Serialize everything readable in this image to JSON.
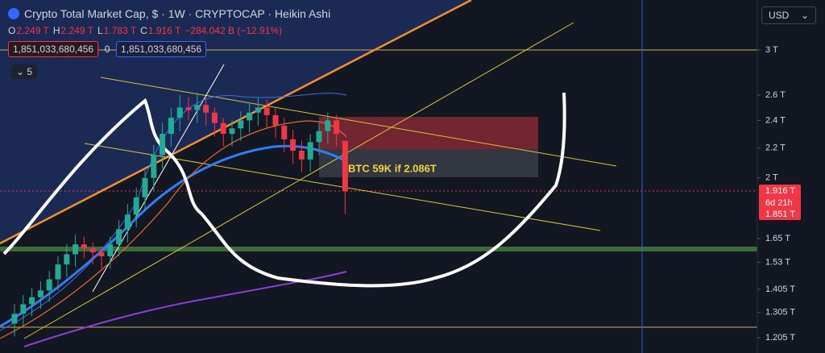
{
  "header": {
    "title": "Crypto Total Market Cap, $ · 1W · CRYPTOCAP · Heikin Ashi",
    "ohlc": [
      {
        "key": "O",
        "value": "2.249 T"
      },
      {
        "key": "H",
        "value": "2.249 T"
      },
      {
        "key": "L",
        "value": "1.783 T"
      },
      {
        "key": "C",
        "value": "1.916 T"
      }
    ],
    "change": "−284.042 B (−12.91%)",
    "boxes": [
      "1,851,033,680,456",
      "0",
      "1,851,033,680,456"
    ],
    "indicators": "5"
  },
  "currency": "USD",
  "annotation": "BTC 59K if 2.086T",
  "price_tags": [
    "1.916 T",
    "6d 21h",
    "1.851 T"
  ],
  "chart_data": {
    "type": "candlestick",
    "log_scale": true,
    "up_color": "#22ab94",
    "down_color": "#f23645",
    "ylim": [
      1.148,
      3.515
    ],
    "yticks": [
      {
        "value": 3,
        "label": "3 T"
      },
      {
        "value": 2.6,
        "label": "2.6 T"
      },
      {
        "value": 2.4,
        "label": "2.4 T"
      },
      {
        "value": 2.2,
        "label": "2.2 T"
      },
      {
        "value": 2,
        "label": "2 T"
      },
      {
        "value": 1.65,
        "label": "1.65 T"
      },
      {
        "value": 1.53,
        "label": "1.53 T"
      },
      {
        "value": 1.405,
        "label": "1.405 T"
      },
      {
        "value": 1.305,
        "label": "1.305 T"
      },
      {
        "value": 1.205,
        "label": "1.205 T"
      }
    ],
    "open": [
      1.26,
      1.3,
      1.34,
      1.37,
      1.4,
      1.45,
      1.52,
      1.57,
      1.62,
      1.6,
      1.58,
      1.56,
      1.62,
      1.7,
      1.78,
      1.88,
      2.0,
      2.15,
      2.3,
      2.42,
      2.5,
      2.48,
      2.52,
      2.46,
      2.38,
      2.3,
      2.34,
      2.4,
      2.46,
      2.5,
      2.44,
      2.36,
      2.26,
      2.18,
      2.12,
      2.24,
      2.32,
      2.4,
      2.249
    ],
    "high": [
      1.34,
      1.38,
      1.41,
      1.44,
      1.49,
      1.56,
      1.62,
      1.67,
      1.66,
      1.63,
      1.61,
      1.66,
      1.75,
      1.84,
      1.94,
      2.07,
      2.22,
      2.38,
      2.5,
      2.6,
      2.58,
      2.62,
      2.58,
      2.5,
      2.42,
      2.4,
      2.47,
      2.53,
      2.58,
      2.56,
      2.5,
      2.42,
      2.33,
      2.25,
      2.3,
      2.38,
      2.46,
      2.44,
      2.249
    ],
    "low": [
      1.21,
      1.25,
      1.29,
      1.32,
      1.35,
      1.4,
      1.46,
      1.51,
      1.55,
      1.52,
      1.5,
      1.5,
      1.56,
      1.63,
      1.71,
      1.8,
      1.92,
      2.06,
      2.21,
      2.32,
      2.4,
      2.38,
      2.36,
      2.28,
      2.21,
      2.21,
      2.25,
      2.31,
      2.36,
      2.34,
      2.27,
      2.17,
      2.09,
      2.04,
      2.04,
      2.15,
      2.23,
      2.21,
      1.783
    ],
    "close": [
      1.3,
      1.34,
      1.37,
      1.4,
      1.45,
      1.52,
      1.57,
      1.62,
      1.6,
      1.58,
      1.56,
      1.62,
      1.7,
      1.78,
      1.88,
      2.0,
      2.15,
      2.3,
      2.42,
      2.5,
      2.48,
      2.52,
      2.46,
      2.38,
      2.3,
      2.34,
      2.4,
      2.46,
      2.5,
      2.44,
      2.36,
      2.26,
      2.18,
      2.12,
      2.24,
      2.32,
      2.4,
      2.3,
      1.916
    ]
  }
}
